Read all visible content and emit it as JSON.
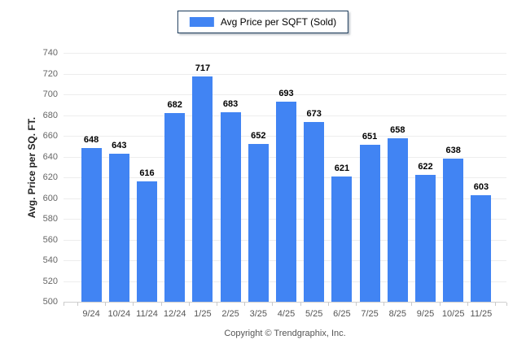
{
  "chart_data": {
    "type": "bar",
    "title": "",
    "legend_label": "Avg Price per SQFT (Sold)",
    "legend_position": "top-center",
    "categories": [
      "9/24",
      "10/24",
      "11/24",
      "12/24",
      "1/25",
      "2/25",
      "3/25",
      "4/25",
      "5/25",
      "6/25",
      "7/25",
      "8/25",
      "9/25",
      "10/25",
      "11/25"
    ],
    "values": [
      648,
      643,
      616,
      682,
      717,
      683,
      652,
      693,
      673,
      621,
      651,
      658,
      622,
      638,
      603
    ],
    "xlabel": "",
    "ylabel": "Avg. Price per SQ. FT.",
    "ylim": [
      500,
      740
    ],
    "ytick_step": 20,
    "grid": true,
    "value_labels_shown": true,
    "bar_color": "#4184F3",
    "legend_border_color": "#1B3A5A"
  },
  "footer": {
    "text": "Copyright © Trendgraphix, Inc."
  }
}
